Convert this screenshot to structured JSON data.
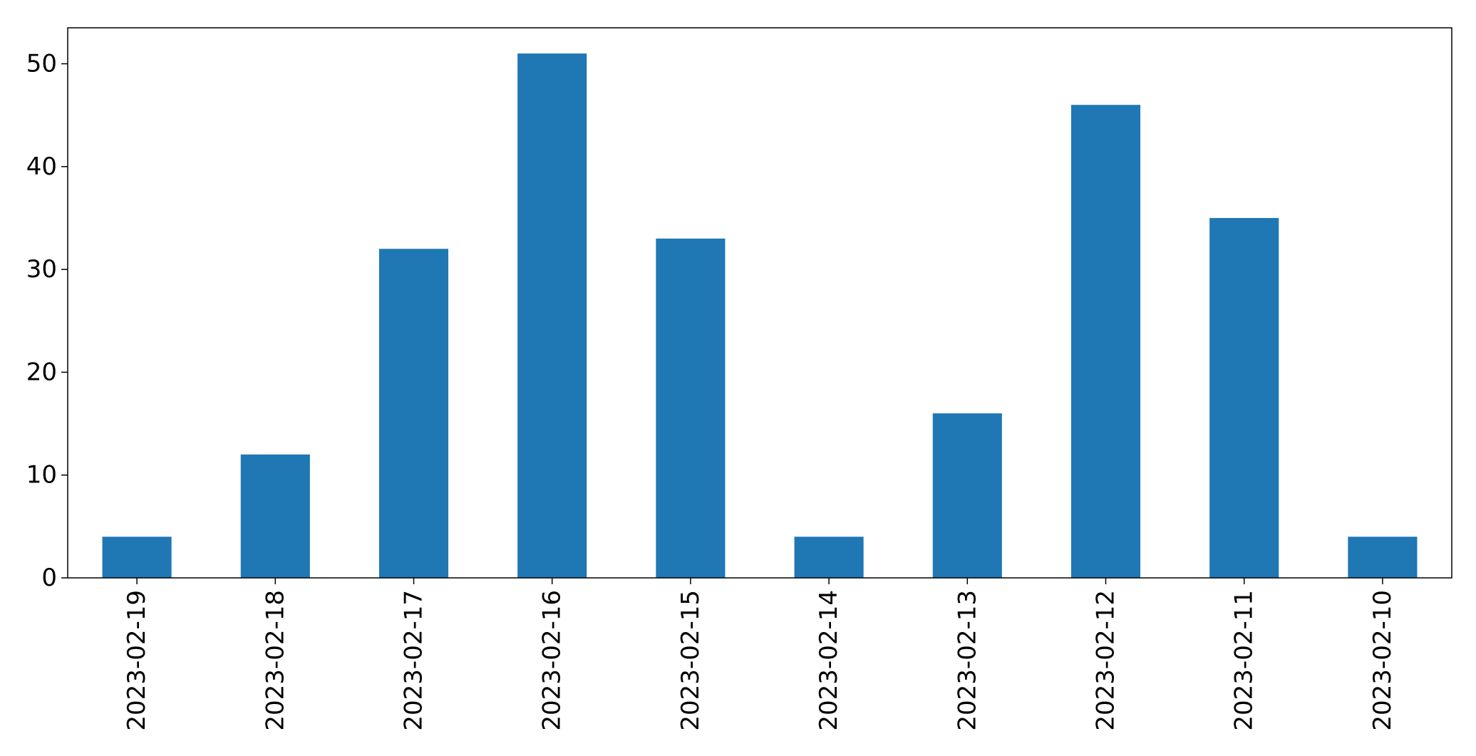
{
  "chart_data": {
    "type": "bar",
    "categories": [
      "2023-02-19",
      "2023-02-18",
      "2023-02-17",
      "2023-02-16",
      "2023-02-15",
      "2023-02-14",
      "2023-02-13",
      "2023-02-12",
      "2023-02-11",
      "2023-02-10"
    ],
    "values": [
      4,
      12,
      32,
      51,
      33,
      4,
      16,
      46,
      35,
      4
    ],
    "title": "",
    "xlabel": "",
    "ylabel": "",
    "ylim": [
      0,
      53.5
    ],
    "yticks": [
      0,
      10,
      20,
      30,
      40,
      50
    ],
    "grid": false,
    "legend": "none",
    "bar_color": "#1f77b4",
    "axis_color": "#000000"
  }
}
